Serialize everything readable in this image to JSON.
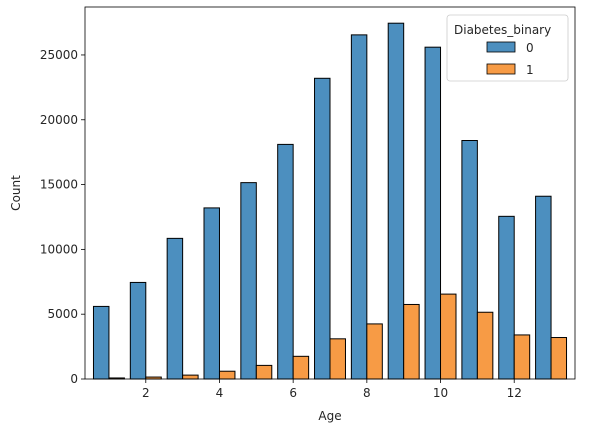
{
  "chart_data": {
    "type": "bar",
    "categories": [
      1,
      2,
      3,
      4,
      5,
      6,
      7,
      8,
      9,
      10,
      11,
      12,
      13
    ],
    "series": [
      {
        "name": "0",
        "color": "#4C8FBF",
        "values": [
          5600,
          7450,
          10850,
          13200,
          15150,
          18100,
          23200,
          26550,
          27450,
          25600,
          18400,
          12550,
          14100
        ]
      },
      {
        "name": "1",
        "color": "#F79B45",
        "values": [
          80,
          150,
          300,
          600,
          1050,
          1750,
          3100,
          4250,
          5750,
          6550,
          5150,
          3400,
          3200
        ]
      }
    ],
    "xlabel": "Age",
    "ylabel": "Count",
    "xlim": [
      0.35,
      13.65
    ],
    "ylim": [
      0,
      28700
    ],
    "xticks": [
      2,
      4,
      6,
      8,
      10,
      12
    ],
    "yticks": [
      0,
      5000,
      10000,
      15000,
      20000,
      25000
    ],
    "legend": {
      "title": "Diabetes_binary",
      "position": "top-right"
    }
  }
}
